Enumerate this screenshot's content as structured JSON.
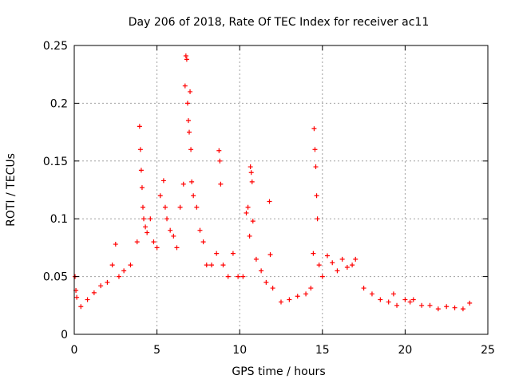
{
  "chart_data": {
    "type": "scatter",
    "title": "Day 206 of 2018, Rate Of TEC Index for receiver ac11",
    "xlabel": "GPS time / hours",
    "ylabel": "ROTI / TECUs",
    "xlim": [
      0,
      25
    ],
    "ylim": [
      0,
      0.25
    ],
    "xticks": [
      0,
      5,
      10,
      15,
      20,
      25
    ],
    "yticks": [
      0,
      0.05,
      0.1,
      0.15,
      0.2,
      0.25
    ],
    "xtick_labels": [
      "0",
      "5",
      "10",
      "15",
      "20",
      "25"
    ],
    "ytick_labels": [
      "0",
      "0.05",
      "0.1",
      "0.15",
      "0.2",
      "0.25"
    ],
    "grid": true,
    "marker": "+",
    "series": [
      {
        "name": "ROTI",
        "color": "#ff0000",
        "x": [
          0.05,
          0.1,
          0.15,
          0.4,
          0.8,
          1.2,
          1.6,
          2.0,
          2.3,
          2.5,
          2.7,
          3.0,
          3.4,
          3.8,
          3.95,
          4.0,
          4.05,
          4.1,
          4.15,
          4.2,
          4.3,
          4.4,
          4.6,
          4.8,
          5.0,
          5.2,
          5.4,
          5.5,
          5.6,
          5.8,
          6.0,
          6.2,
          6.4,
          6.6,
          6.7,
          6.75,
          6.8,
          6.85,
          6.9,
          6.95,
          7.0,
          7.05,
          7.1,
          7.2,
          7.4,
          7.6,
          7.8,
          8.0,
          8.3,
          8.6,
          8.75,
          8.8,
          8.85,
          9.0,
          9.3,
          9.6,
          9.9,
          10.2,
          10.4,
          10.5,
          10.6,
          10.65,
          10.7,
          10.75,
          10.8,
          11.0,
          11.3,
          11.6,
          11.8,
          11.85,
          12.0,
          12.5,
          13.0,
          13.5,
          14.0,
          14.3,
          14.45,
          14.5,
          14.55,
          14.6,
          14.65,
          14.7,
          14.8,
          15.0,
          15.3,
          15.6,
          15.9,
          16.2,
          16.5,
          16.8,
          17.0,
          17.5,
          18.0,
          18.5,
          19.0,
          19.3,
          19.5,
          20.0,
          20.3,
          20.5,
          21.0,
          21.5,
          22.0,
          22.5,
          23.0,
          23.5,
          23.9
        ],
        "y": [
          0.05,
          0.038,
          0.032,
          0.024,
          0.03,
          0.036,
          0.042,
          0.045,
          0.06,
          0.078,
          0.05,
          0.055,
          0.06,
          0.08,
          0.18,
          0.16,
          0.142,
          0.127,
          0.11,
          0.1,
          0.093,
          0.088,
          0.1,
          0.08,
          0.075,
          0.12,
          0.133,
          0.11,
          0.1,
          0.09,
          0.085,
          0.075,
          0.11,
          0.13,
          0.215,
          0.241,
          0.238,
          0.2,
          0.185,
          0.175,
          0.21,
          0.16,
          0.132,
          0.12,
          0.11,
          0.09,
          0.08,
          0.06,
          0.06,
          0.07,
          0.159,
          0.15,
          0.13,
          0.06,
          0.05,
          0.07,
          0.05,
          0.05,
          0.105,
          0.11,
          0.085,
          0.145,
          0.14,
          0.132,
          0.098,
          0.065,
          0.055,
          0.045,
          0.115,
          0.069,
          0.04,
          0.028,
          0.03,
          0.033,
          0.035,
          0.04,
          0.07,
          0.178,
          0.16,
          0.145,
          0.12,
          0.1,
          0.06,
          0.05,
          0.068,
          0.062,
          0.055,
          0.065,
          0.058,
          0.06,
          0.065,
          0.04,
          0.035,
          0.03,
          0.028,
          0.035,
          0.025,
          0.03,
          0.028,
          0.03,
          0.025,
          0.025,
          0.022,
          0.024,
          0.023,
          0.022,
          0.027
        ]
      }
    ]
  }
}
